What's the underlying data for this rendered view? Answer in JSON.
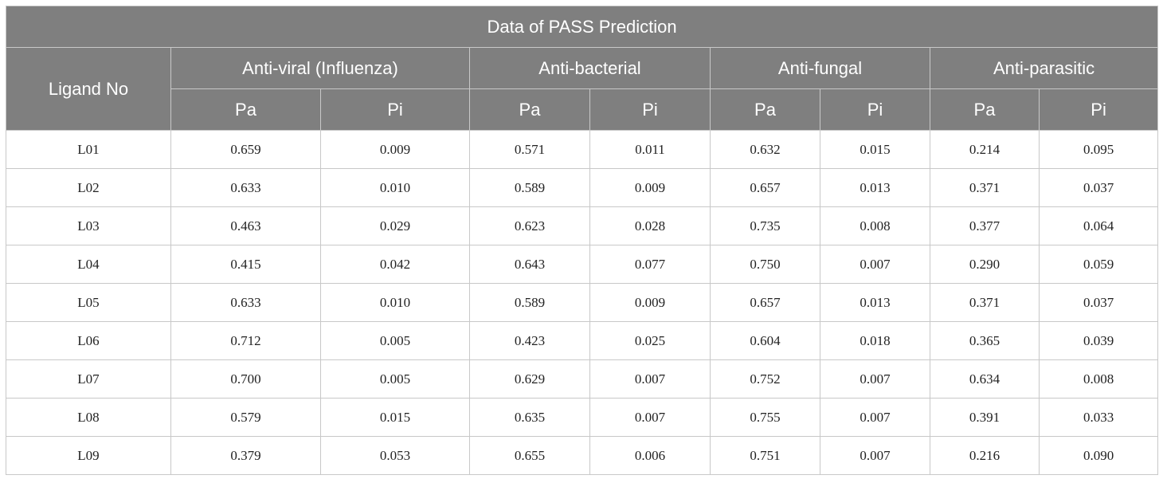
{
  "table": {
    "title": "Data of PASS Prediction",
    "ligand_header": "Ligand No",
    "groups": [
      {
        "label": "Anti-viral (Influenza)",
        "pa": "Pa",
        "pi": "Pi"
      },
      {
        "label": "Anti-bacterial",
        "pa": "Pa",
        "pi": "Pi"
      },
      {
        "label": "Anti-fungal",
        "pa": "Pa",
        "pi": "Pi"
      },
      {
        "label": "Anti-parasitic",
        "pa": "Pa",
        "pi": "Pi"
      }
    ],
    "rows": [
      [
        "L01",
        "0.659",
        "0.009",
        "0.571",
        "0.011",
        "0.632",
        "0.015",
        "0.214",
        "0.095"
      ],
      [
        "L02",
        "0.633",
        "0.010",
        "0.589",
        "0.009",
        "0.657",
        "0.013",
        "0.371",
        "0.037"
      ],
      [
        "L03",
        "0.463",
        "0.029",
        "0.623",
        "0.028",
        "0.735",
        "0.008",
        "0.377",
        "0.064"
      ],
      [
        "L04",
        "0.415",
        "0.042",
        "0.643",
        "0.077",
        "0.750",
        "0.007",
        "0.290",
        "0.059"
      ],
      [
        "L05",
        "0.633",
        "0.010",
        "0.589",
        "0.009",
        "0.657",
        "0.013",
        "0.371",
        "0.037"
      ],
      [
        "L06",
        "0.712",
        "0.005",
        "0.423",
        "0.025",
        "0.604",
        "0.018",
        "0.365",
        "0.039"
      ],
      [
        "L07",
        "0.700",
        "0.005",
        "0.629",
        "0.007",
        "0.752",
        "0.007",
        "0.634",
        "0.008"
      ],
      [
        "L08",
        "0.579",
        "0.015",
        "0.635",
        "0.007",
        "0.755",
        "0.007",
        "0.391",
        "0.033"
      ],
      [
        "L09",
        "0.379",
        "0.053",
        "0.655",
        "0.006",
        "0.751",
        "0.007",
        "0.216",
        "0.090"
      ]
    ]
  }
}
